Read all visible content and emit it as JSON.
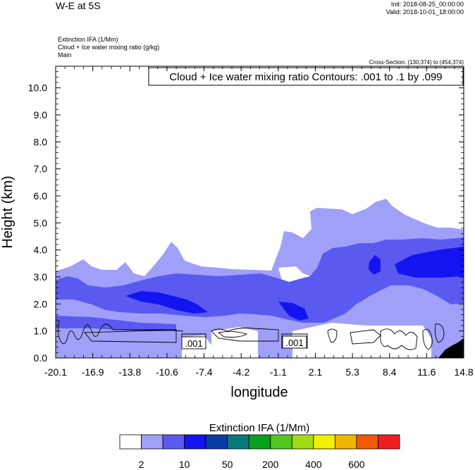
{
  "header": {
    "title": "W-E at 5S",
    "init": "Init: 2018-08-25_00:00:00",
    "valid": "Valid: 2018-10-01_18:00:00",
    "field1": "Extinction IFA   (1/Mm)",
    "field2": "Cloud + Ice water mixing ratio   (g/kg)",
    "field3": "Main",
    "cross_section": "Cross-Section: (130,374) to (454,374)",
    "contour_note": "Cloud + Ice water mixing ratio Contours: .001 to .1 by .099"
  },
  "chart_data": {
    "type": "heatmap",
    "xlabel": "longitude",
    "ylabel": "Height (km)",
    "x_ticks": [
      "-20.1",
      "-16.9",
      "-13.8",
      "-10.6",
      "-7.4",
      "-4.2",
      "-1.1",
      "2.1",
      "5.3",
      "8.4",
      "11.6",
      "14.8"
    ],
    "y_ticks": [
      "0.0",
      "1.0",
      "2.0",
      "3.0",
      "4.0",
      "5.0",
      "6.0",
      "7.0",
      "8.0",
      "9.0",
      "10.0"
    ],
    "xlim": [
      -20.1,
      14.8
    ],
    "ylim": [
      0,
      10.8
    ],
    "contour_labels": [
      ".001",
      ".001"
    ],
    "colorbar": {
      "title": "Extinction IFA  (1/Mm)",
      "colors": [
        "#ffffff",
        "#a0a0f8",
        "#5a5af0",
        "#1414f0",
        "#0a3ca8",
        "#0a7878",
        "#0aa01e",
        "#50c81e",
        "#a0dc14",
        "#f0f000",
        "#f0b400",
        "#f05a00",
        "#f01e1e"
      ],
      "labels": [
        "2",
        "10",
        "50",
        "200",
        "400",
        "600"
      ]
    }
  }
}
